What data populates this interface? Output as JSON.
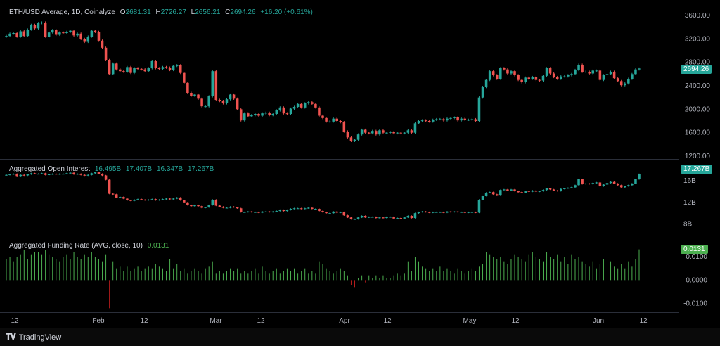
{
  "header": {
    "symbol": "ETH/USD Average, 1D, Coinalyze",
    "o_label": "O",
    "o": "2681.31",
    "h_label": "H",
    "h": "2726.27",
    "l_label": "L",
    "l": "2656.21",
    "c_label": "C",
    "c": "2694.26",
    "change": "+16.20 (+0.61%)"
  },
  "oi_legend": {
    "title": "Aggregated Open Interest",
    "v1": "16.495B",
    "v2": "17.407B",
    "v3": "16.347B",
    "v4": "17.267B"
  },
  "fr_legend": {
    "title": "Aggregated Funding Rate (AVG, close, 10)",
    "v": "0.0131"
  },
  "badges": {
    "price": "2694.26",
    "oi": "17.267B",
    "fr": "0.0131"
  },
  "footer": {
    "brand": "TradingView"
  },
  "colors": {
    "up": "#26a69a",
    "down": "#ef5350",
    "fr": "#4caf50",
    "fr_neg": "#b71c1c"
  },
  "chart_data": [
    {
      "type": "candlestick",
      "title": "ETH/USD Average, 1D, Coinalyze",
      "ylim": [
        1200,
        3600
      ],
      "yticks": [
        "3600.00",
        "3200.00",
        "2800.00",
        "2400.00",
        "2000.00",
        "1600.00",
        "1200.00"
      ],
      "xticks": [
        "12",
        "Feb",
        "12",
        "Mar",
        "12",
        "Apr",
        "12",
        "May",
        "12",
        "Jun",
        "12"
      ],
      "close": [
        3250,
        3290,
        3300,
        3240,
        3330,
        3250,
        3360,
        3440,
        3380,
        3470,
        3480,
        3240,
        3310,
        3350,
        3270,
        3310,
        3300,
        3320,
        3340,
        3260,
        3290,
        3200,
        3150,
        3240,
        3340,
        3320,
        3170,
        3050,
        2840,
        2600,
        2780,
        2680,
        2650,
        2640,
        2720,
        2620,
        2700,
        2690,
        2680,
        2650,
        2700,
        2820,
        2700,
        2690,
        2720,
        2710,
        2670,
        2740,
        2750,
        2620,
        2450,
        2280,
        2230,
        2250,
        2180,
        2050,
        2050,
        2220,
        2650,
        2160,
        2140,
        2100,
        2170,
        2250,
        2180,
        2000,
        1810,
        1930,
        1880,
        1900,
        1920,
        1890,
        1930,
        1940,
        1900,
        1920,
        1980,
        2030,
        1930,
        1920,
        2010,
        2040,
        2090,
        2030,
        2100,
        2120,
        2090,
        2030,
        1890,
        1850,
        1790,
        1790,
        1840,
        1800,
        1780,
        1620,
        1520,
        1460,
        1480,
        1570,
        1650,
        1600,
        1590,
        1630,
        1570,
        1640,
        1600,
        1600,
        1610,
        1590,
        1600,
        1590,
        1600,
        1640,
        1600,
        1760,
        1800,
        1810,
        1800,
        1790,
        1820,
        1830,
        1830,
        1810,
        1840,
        1850,
        1860,
        1810,
        1840,
        1820,
        1820,
        1830,
        1800,
        2200,
        2380,
        2500,
        2650,
        2580,
        2520,
        2700,
        2680,
        2610,
        2650,
        2580,
        2500,
        2460,
        2540,
        2520,
        2550,
        2500,
        2490,
        2570,
        2700,
        2610,
        2550,
        2520,
        2560,
        2560,
        2580,
        2600,
        2670,
        2760,
        2640,
        2640,
        2610,
        2660,
        2660,
        2500,
        2580,
        2600,
        2640,
        2530,
        2480,
        2410,
        2440,
        2520,
        2600,
        2680,
        2695
      ]
    },
    {
      "type": "candlestick",
      "title": "Aggregated Open Interest",
      "ylim": [
        6.5,
        18.5
      ],
      "yticks": [
        "16B",
        "12B",
        "8B"
      ],
      "close": [
        17.1,
        17.2,
        17.3,
        16.9,
        17.1,
        17.0,
        17.2,
        17.4,
        17.3,
        17.3,
        17.4,
        17.1,
        17.2,
        17.3,
        17.2,
        17.3,
        17.3,
        17.4,
        17.5,
        17.2,
        17.3,
        17.1,
        17.0,
        17.1,
        17.4,
        17.6,
        17.3,
        17.0,
        16.2,
        13.6,
        13.5,
        12.9,
        13.0,
        12.7,
        12.4,
        12.3,
        12.5,
        12.6,
        12.5,
        12.4,
        12.5,
        12.6,
        12.4,
        12.5,
        12.6,
        12.7,
        12.6,
        12.7,
        12.9,
        12.4,
        12.0,
        11.5,
        11.3,
        11.5,
        11.3,
        11.0,
        11.1,
        11.5,
        12.5,
        11.4,
        11.2,
        11.0,
        11.0,
        11.2,
        11.1,
        10.9,
        10.2,
        10.2,
        10.3,
        10.2,
        10.2,
        10.1,
        10.3,
        10.3,
        10.2,
        10.3,
        10.4,
        10.6,
        10.4,
        10.6,
        10.8,
        10.9,
        10.9,
        10.8,
        10.9,
        11.0,
        10.8,
        10.8,
        10.4,
        10.2,
        10.0,
        10.0,
        10.3,
        10.1,
        10.2,
        9.6,
        9.2,
        8.9,
        8.9,
        9.2,
        9.5,
        9.2,
        9.3,
        9.3,
        9.1,
        9.2,
        9.1,
        9.3,
        9.3,
        9.0,
        9.1,
        9.0,
        9.2,
        9.5,
        9.1,
        10.0,
        10.2,
        10.3,
        10.2,
        10.1,
        10.2,
        10.2,
        10.2,
        10.1,
        10.3,
        10.2,
        10.3,
        10.2,
        10.2,
        10.1,
        10.2,
        10.2,
        10.1,
        12.5,
        13.2,
        13.8,
        13.9,
        13.5,
        13.4,
        14.3,
        14.4,
        14.2,
        14.4,
        14.1,
        13.9,
        13.8,
        14.1,
        14.0,
        14.2,
        14.0,
        14.1,
        14.3,
        14.6,
        14.4,
        14.2,
        14.1,
        14.5,
        14.6,
        14.7,
        14.8,
        15.2,
        16.3,
        15.4,
        15.5,
        15.4,
        15.6,
        15.7,
        15.0,
        15.3,
        15.6,
        15.8,
        15.5,
        15.2,
        14.8,
        15.0,
        15.2,
        15.5,
        16.3,
        17.267
      ]
    },
    {
      "type": "bar",
      "title": "Aggregated Funding Rate (AVG, close, 10)",
      "ylim": [
        -0.0125,
        0.0145
      ],
      "yticks": [
        "0.0100",
        "0.0000",
        "-0.0100"
      ],
      "values": [
        0.009,
        0.01,
        0.008,
        0.01,
        0.011,
        0.013,
        0.009,
        0.011,
        0.012,
        0.012,
        0.011,
        0.013,
        0.011,
        0.01,
        0.009,
        0.008,
        0.01,
        0.011,
        0.009,
        0.012,
        0.01,
        0.009,
        0.011,
        0.01,
        0.012,
        0.01,
        0.009,
        0.008,
        0.011,
        -0.012,
        0.008,
        0.005,
        0.006,
        0.004,
        0.006,
        0.004,
        0.005,
        0.006,
        0.004,
        0.005,
        0.006,
        0.005,
        0.007,
        0.006,
        0.005,
        0.004,
        0.009,
        0.005,
        0.007,
        0.004,
        0.005,
        0.003,
        0.004,
        0.005,
        0.004,
        0.003,
        0.005,
        0.006,
        0.008,
        0.003,
        0.004,
        0.003,
        0.004,
        0.005,
        0.004,
        0.005,
        0.003,
        0.004,
        0.003,
        0.004,
        0.005,
        0.003,
        0.006,
        0.004,
        0.003,
        0.004,
        0.005,
        0.003,
        0.004,
        0.005,
        0.004,
        0.005,
        0.003,
        0.004,
        0.005,
        0.003,
        0.004,
        0.003,
        0.008,
        0.007,
        0.005,
        0.004,
        0.003,
        0.004,
        0.005,
        0.004,
        0.002,
        -0.002,
        -0.003,
        0.001,
        0.002,
        -0.001,
        0.002,
        0.001,
        0.002,
        0.001,
        0.002,
        0.001,
        0.001,
        0.002,
        0.003,
        0.002,
        0.003,
        0.008,
        0.004,
        0.01,
        0.008,
        0.006,
        0.005,
        0.004,
        0.005,
        0.004,
        0.006,
        0.004,
        0.005,
        0.004,
        0.003,
        0.005,
        0.004,
        0.003,
        0.004,
        0.005,
        0.004,
        0.006,
        0.007,
        0.012,
        0.011,
        0.01,
        0.009,
        0.01,
        0.008,
        0.007,
        0.009,
        0.011,
        0.01,
        0.009,
        0.008,
        0.011,
        0.012,
        0.01,
        0.009,
        0.008,
        0.012,
        0.01,
        0.009,
        0.011,
        0.008,
        0.01,
        0.007,
        0.011,
        0.009,
        0.01,
        0.008,
        0.007,
        0.006,
        0.008,
        0.005,
        0.007,
        0.009,
        0.006,
        0.008,
        0.006,
        0.005,
        0.007,
        0.005,
        0.008,
        0.006,
        0.009,
        0.0131
      ]
    }
  ]
}
